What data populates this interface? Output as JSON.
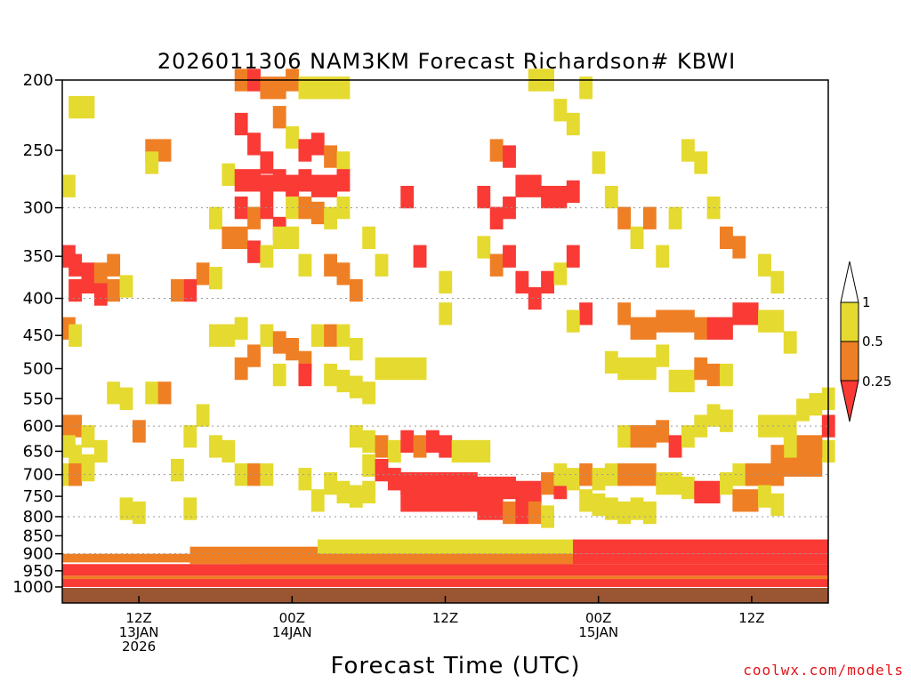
{
  "chart_data": {
    "type": "heatmap",
    "title": "2026011306 NAM3KM Forecast Richardson# KBWI",
    "xlabel": "Forecast Time (UTC)",
    "ylabel": "",
    "credit": "coolwx.com/models",
    "y_axis": {
      "scale": "log-pressure",
      "ylim": [
        1000,
        200
      ],
      "ticks": [
        200,
        250,
        300,
        350,
        400,
        450,
        500,
        550,
        600,
        650,
        700,
        750,
        800,
        850,
        900,
        950,
        1000
      ],
      "gridlines": [
        300,
        400,
        600,
        700,
        800,
        900
      ]
    },
    "x_axis": {
      "unit": "forecast hour",
      "xlim": [
        0,
        60
      ],
      "ticks": [
        {
          "hour": 6,
          "lines": [
            "12Z",
            "13JAN",
            "2026"
          ]
        },
        {
          "hour": 18,
          "lines": [
            "00Z",
            "14JAN"
          ]
        },
        {
          "hour": 30,
          "lines": [
            "12Z"
          ]
        },
        {
          "hour": 42,
          "lines": [
            "00Z",
            "15JAN"
          ]
        },
        {
          "hour": 54,
          "lines": [
            "12Z"
          ]
        }
      ]
    },
    "colorbar": {
      "levels": [
        0,
        0.25,
        0.5,
        1
      ],
      "labels": [
        "1",
        "0.5",
        "0.25"
      ],
      "colors": {
        "lt_0.25": "#f93a35",
        "0.25_0.5": "#ef7f25",
        "0.5_1": "#e5da2f",
        "gt_1": "#ffffff"
      }
    },
    "ground_color": "#9a5632",
    "cells": [
      [
        1,
        218,
        2
      ],
      [
        2,
        218,
        2
      ],
      [
        0,
        280,
        2
      ],
      [
        0,
        350,
        0
      ],
      [
        1,
        360,
        0
      ],
      [
        2,
        370,
        0
      ],
      [
        1,
        390,
        0
      ],
      [
        2,
        380,
        0
      ],
      [
        3,
        370,
        1
      ],
      [
        4,
        360,
        1
      ],
      [
        4,
        390,
        1
      ],
      [
        3,
        395,
        0
      ],
      [
        5,
        385,
        2
      ],
      [
        0,
        440,
        1
      ],
      [
        1,
        450,
        2
      ],
      [
        7,
        250,
        1
      ],
      [
        8,
        250,
        1
      ],
      [
        7,
        260,
        2
      ],
      [
        13,
        270,
        2
      ],
      [
        14,
        200,
        1
      ],
      [
        15,
        200,
        0
      ],
      [
        16,
        205,
        1
      ],
      [
        17,
        205,
        1
      ],
      [
        18,
        200,
        1
      ],
      [
        19,
        205,
        2
      ],
      [
        20,
        205,
        2
      ],
      [
        21,
        205,
        2
      ],
      [
        22,
        205,
        2
      ],
      [
        14,
        230,
        0
      ],
      [
        15,
        245,
        0
      ],
      [
        16,
        260,
        0
      ],
      [
        17,
        225,
        1
      ],
      [
        18,
        240,
        2
      ],
      [
        19,
        250,
        0
      ],
      [
        20,
        245,
        0
      ],
      [
        21,
        255,
        1
      ],
      [
        22,
        260,
        2
      ],
      [
        14,
        275,
        0
      ],
      [
        15,
        275,
        0
      ],
      [
        16,
        280,
        0
      ],
      [
        17,
        275,
        0
      ],
      [
        18,
        280,
        0
      ],
      [
        19,
        275,
        0
      ],
      [
        20,
        280,
        0
      ],
      [
        21,
        280,
        0
      ],
      [
        22,
        275,
        0
      ],
      [
        14,
        300,
        0
      ],
      [
        15,
        310,
        1
      ],
      [
        16,
        300,
        0
      ],
      [
        17,
        320,
        0
      ],
      [
        18,
        300,
        2
      ],
      [
        19,
        300,
        1
      ],
      [
        20,
        305,
        1
      ],
      [
        21,
        310,
        2
      ],
      [
        22,
        300,
        2
      ],
      [
        12,
        310,
        2
      ],
      [
        13,
        330,
        1
      ],
      [
        14,
        330,
        1
      ],
      [
        15,
        345,
        0
      ],
      [
        16,
        350,
        2
      ],
      [
        17,
        330,
        2
      ],
      [
        18,
        330,
        2
      ],
      [
        19,
        360,
        2
      ],
      [
        11,
        370,
        1
      ],
      [
        12,
        375,
        2
      ],
      [
        10,
        390,
        0
      ],
      [
        9,
        390,
        1
      ],
      [
        21,
        360,
        1
      ],
      [
        22,
        370,
        1
      ],
      [
        23,
        390,
        1
      ],
      [
        24,
        330,
        2
      ],
      [
        25,
        360,
        2
      ],
      [
        20,
        450,
        2
      ],
      [
        21,
        450,
        1
      ],
      [
        22,
        450,
        2
      ],
      [
        23,
        470,
        2
      ],
      [
        12,
        450,
        2
      ],
      [
        13,
        450,
        2
      ],
      [
        14,
        440,
        2
      ],
      [
        15,
        480,
        1
      ],
      [
        16,
        450,
        2
      ],
      [
        17,
        460,
        1
      ],
      [
        18,
        470,
        1
      ],
      [
        19,
        490,
        1
      ],
      [
        14,
        500,
        1
      ],
      [
        17,
        510,
        2
      ],
      [
        19,
        510,
        0
      ],
      [
        21,
        510,
        2
      ],
      [
        22,
        520,
        2
      ],
      [
        23,
        530,
        2
      ],
      [
        24,
        540,
        2
      ],
      [
        25,
        500,
        2
      ],
      [
        26,
        500,
        2
      ],
      [
        27,
        500,
        2
      ],
      [
        28,
        500,
        2
      ],
      [
        27,
        290,
        0
      ],
      [
        28,
        350,
        0
      ],
      [
        30,
        420,
        2
      ],
      [
        30,
        380,
        2
      ],
      [
        34,
        250,
        1
      ],
      [
        35,
        255,
        0
      ],
      [
        33,
        290,
        0
      ],
      [
        34,
        310,
        0
      ],
      [
        35,
        300,
        0
      ],
      [
        36,
        280,
        0
      ],
      [
        37,
        280,
        0
      ],
      [
        38,
        290,
        0
      ],
      [
        39,
        290,
        0
      ],
      [
        40,
        285,
        0
      ],
      [
        33,
        340,
        2
      ],
      [
        34,
        360,
        1
      ],
      [
        35,
        350,
        0
      ],
      [
        36,
        380,
        0
      ],
      [
        37,
        400,
        0
      ],
      [
        38,
        380,
        0
      ],
      [
        39,
        370,
        2
      ],
      [
        40,
        350,
        0
      ],
      [
        41,
        420,
        0
      ],
      [
        40,
        430,
        2
      ],
      [
        37,
        200,
        2
      ],
      [
        38,
        200,
        2
      ],
      [
        39,
        220,
        2
      ],
      [
        40,
        230,
        2
      ],
      [
        41,
        205,
        2
      ],
      [
        42,
        260,
        2
      ],
      [
        43,
        290,
        2
      ],
      [
        44,
        310,
        1
      ],
      [
        45,
        330,
        2
      ],
      [
        46,
        310,
        1
      ],
      [
        47,
        350,
        2
      ],
      [
        48,
        310,
        2
      ],
      [
        49,
        250,
        2
      ],
      [
        50,
        260,
        2
      ],
      [
        51,
        300,
        2
      ],
      [
        52,
        330,
        1
      ],
      [
        53,
        340,
        1
      ],
      [
        55,
        360,
        2
      ],
      [
        56,
        380,
        2
      ],
      [
        44,
        420,
        1
      ],
      [
        45,
        440,
        1
      ],
      [
        46,
        440,
        1
      ],
      [
        47,
        430,
        1
      ],
      [
        48,
        430,
        1
      ],
      [
        49,
        430,
        1
      ],
      [
        50,
        440,
        1
      ],
      [
        51,
        440,
        0
      ],
      [
        52,
        440,
        0
      ],
      [
        53,
        420,
        0
      ],
      [
        54,
        420,
        0
      ],
      [
        55,
        430,
        2
      ],
      [
        56,
        430,
        2
      ],
      [
        57,
        460,
        2
      ],
      [
        43,
        490,
        2
      ],
      [
        44,
        500,
        2
      ],
      [
        45,
        500,
        2
      ],
      [
        46,
        500,
        2
      ],
      [
        47,
        480,
        2
      ],
      [
        48,
        520,
        2
      ],
      [
        49,
        520,
        2
      ],
      [
        50,
        500,
        1
      ],
      [
        51,
        510,
        1
      ],
      [
        52,
        510,
        2
      ],
      [
        4,
        540,
        2
      ],
      [
        5,
        550,
        2
      ],
      [
        6,
        610,
        1
      ],
      [
        7,
        540,
        2
      ],
      [
        8,
        540,
        1
      ],
      [
        10,
        620,
        2
      ],
      [
        11,
        580,
        2
      ],
      [
        12,
        640,
        2
      ],
      [
        13,
        650,
        2
      ],
      [
        0,
        600,
        1
      ],
      [
        1,
        600,
        1
      ],
      [
        2,
        620,
        2
      ],
      [
        0,
        640,
        2
      ],
      [
        1,
        660,
        2
      ],
      [
        2,
        680,
        2
      ],
      [
        0,
        700,
        2
      ],
      [
        1,
        700,
        1
      ],
      [
        2,
        690,
        2
      ],
      [
        3,
        650,
        2
      ],
      [
        5,
        780,
        2
      ],
      [
        6,
        790,
        2
      ],
      [
        10,
        780,
        2
      ],
      [
        9,
        690,
        2
      ],
      [
        23,
        620,
        2
      ],
      [
        24,
        630,
        2
      ],
      [
        25,
        640,
        1
      ],
      [
        26,
        650,
        2
      ],
      [
        27,
        630,
        0
      ],
      [
        28,
        640,
        1
      ],
      [
        29,
        630,
        0
      ],
      [
        30,
        640,
        0
      ],
      [
        31,
        650,
        2
      ],
      [
        32,
        650,
        2
      ],
      [
        33,
        650,
        2
      ],
      [
        24,
        680,
        2
      ],
      [
        25,
        690,
        0
      ],
      [
        26,
        710,
        0
      ],
      [
        27,
        720,
        0
      ],
      [
        28,
        720,
        0
      ],
      [
        29,
        720,
        0
      ],
      [
        30,
        720,
        0
      ],
      [
        31,
        720,
        0
      ],
      [
        32,
        720,
        0
      ],
      [
        33,
        730,
        0
      ],
      [
        34,
        730,
        0
      ],
      [
        35,
        730,
        0
      ],
      [
        36,
        740,
        0
      ],
      [
        37,
        740,
        0
      ],
      [
        38,
        720,
        1
      ],
      [
        39,
        730,
        0
      ],
      [
        27,
        760,
        0
      ],
      [
        28,
        760,
        0
      ],
      [
        29,
        760,
        0
      ],
      [
        30,
        760,
        0
      ],
      [
        31,
        760,
        0
      ],
      [
        32,
        760,
        0
      ],
      [
        33,
        780,
        0
      ],
      [
        34,
        780,
        0
      ],
      [
        35,
        790,
        1
      ],
      [
        36,
        790,
        0
      ],
      [
        37,
        790,
        1
      ],
      [
        38,
        800,
        2
      ],
      [
        39,
        700,
        2
      ],
      [
        40,
        710,
        2
      ],
      [
        41,
        700,
        1
      ],
      [
        42,
        710,
        2
      ],
      [
        43,
        700,
        2
      ],
      [
        44,
        700,
        1
      ],
      [
        45,
        700,
        1
      ],
      [
        46,
        700,
        1
      ],
      [
        47,
        720,
        2
      ],
      [
        48,
        720,
        2
      ],
      [
        49,
        730,
        2
      ],
      [
        50,
        740,
        0
      ],
      [
        51,
        740,
        0
      ],
      [
        52,
        720,
        2
      ],
      [
        44,
        620,
        2
      ],
      [
        45,
        620,
        1
      ],
      [
        46,
        620,
        1
      ],
      [
        47,
        610,
        1
      ],
      [
        48,
        640,
        0
      ],
      [
        49,
        620,
        2
      ],
      [
        50,
        600,
        2
      ],
      [
        51,
        580,
        2
      ],
      [
        52,
        590,
        2
      ],
      [
        53,
        700,
        2
      ],
      [
        54,
        700,
        1
      ],
      [
        55,
        700,
        1
      ],
      [
        56,
        700,
        1
      ],
      [
        57,
        680,
        1
      ],
      [
        58,
        680,
        1
      ],
      [
        59,
        680,
        1
      ],
      [
        60,
        650,
        2
      ],
      [
        58,
        640,
        1
      ],
      [
        59,
        640,
        1
      ],
      [
        60,
        600,
        0
      ],
      [
        57,
        640,
        2
      ],
      [
        56,
        660,
        1
      ],
      [
        55,
        600,
        2
      ],
      [
        56,
        600,
        2
      ],
      [
        57,
        600,
        2
      ],
      [
        58,
        570,
        2
      ],
      [
        59,
        560,
        2
      ],
      [
        60,
        550,
        2
      ],
      [
        53,
        760,
        1
      ],
      [
        54,
        760,
        1
      ],
      [
        55,
        750,
        2
      ],
      [
        56,
        770,
        2
      ],
      [
        41,
        760,
        2
      ],
      [
        42,
        770,
        2
      ],
      [
        43,
        780,
        2
      ],
      [
        44,
        790,
        2
      ],
      [
        45,
        780,
        2
      ],
      [
        46,
        790,
        2
      ],
      [
        14,
        700,
        2
      ],
      [
        15,
        700,
        1
      ],
      [
        16,
        700,
        2
      ],
      [
        19,
        710,
        2
      ],
      [
        21,
        720,
        2
      ],
      [
        22,
        740,
        2
      ],
      [
        20,
        760,
        2
      ],
      [
        23,
        750,
        2
      ],
      [
        24,
        740,
        2
      ]
    ],
    "low_levels": [
      {
        "hours": [
          0,
          60
        ],
        "p_top": 975,
        "p_bot": 1000,
        "class": 0
      },
      {
        "hours": [
          0,
          60
        ],
        "p_top": 930,
        "p_bot": 965,
        "class": 0
      },
      {
        "hours": [
          14,
          60
        ],
        "p_top": 900,
        "p_bot": 930,
        "class": 0
      },
      {
        "hours": [
          40,
          60
        ],
        "p_top": 860,
        "p_bot": 900,
        "class": 0
      },
      {
        "hours": [
          0,
          10
        ],
        "p_top": 900,
        "p_bot": 925,
        "class": 1
      },
      {
        "hours": [
          10,
          40
        ],
        "p_top": 880,
        "p_bot": 930,
        "class": 1
      },
      {
        "hours": [
          20,
          40
        ],
        "p_top": 860,
        "p_bot": 900,
        "class": 2
      },
      {
        "hours": [
          0,
          60
        ],
        "p_top": 965,
        "p_bot": 975,
        "class": 1
      }
    ]
  }
}
